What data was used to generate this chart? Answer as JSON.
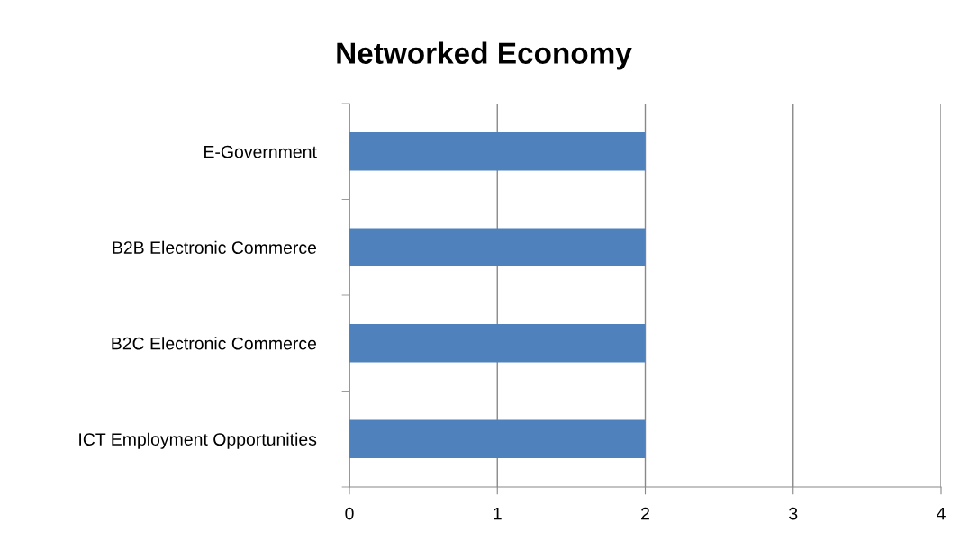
{
  "chart_data": {
    "type": "bar",
    "orientation": "horizontal",
    "title": "Networked Economy",
    "categories": [
      "E-Government",
      "B2B Electronic Commerce",
      "B2C Electronic Commerce",
      "ICT Employment Opportunities"
    ],
    "series": [
      {
        "color": "#4f81bd",
        "values": [
          2,
          2,
          2,
          2
        ]
      }
    ],
    "xlim": [
      0,
      4
    ],
    "xticks": [
      0,
      1,
      2,
      3,
      4
    ],
    "grid": "x"
  }
}
